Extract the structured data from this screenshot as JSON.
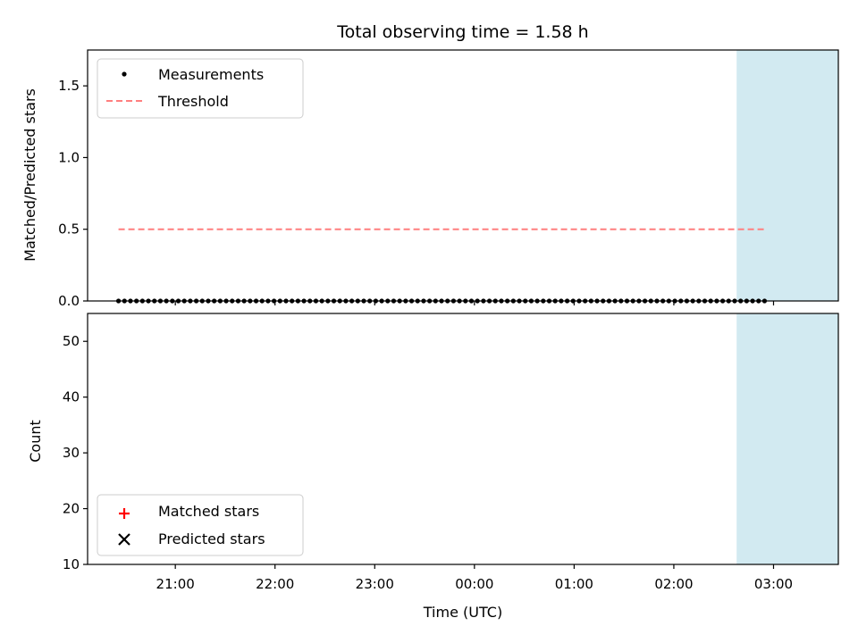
{
  "chart_data": {
    "title": "Total observing time = 1.58 h",
    "xlabel": "Time (UTC)",
    "x_ticks": [
      "21:00",
      "22:00",
      "23:00",
      "00:00",
      "01:00",
      "02:00",
      "03:00"
    ],
    "x_tick_hours": [
      21,
      22,
      23,
      24,
      25,
      26,
      27
    ],
    "xlim_hours": [
      20.12,
      27.65
    ],
    "highlight_span_hours": [
      26.63,
      28.22
    ],
    "highlight_color": "#add8e6",
    "panels": [
      {
        "type": "scatter",
        "ylabel": "Matched/Predicted stars",
        "ylim": [
          0,
          1.75
        ],
        "y_ticks": [
          "0.0",
          "0.5",
          "1.0",
          "1.5"
        ],
        "y_tick_values": [
          0.0,
          0.5,
          1.0,
          1.5
        ],
        "legend": "top-left",
        "series": [
          {
            "name": "Measurements",
            "marker": "dot",
            "color": "#000000",
            "x": [
              20.43,
              20.49,
              20.55,
              20.61,
              20.67,
              20.73,
              20.79,
              20.85,
              20.91,
              20.97,
              21.03,
              21.09,
              21.15,
              21.21,
              21.27,
              21.33,
              21.39,
              21.45,
              21.51,
              21.57,
              21.63,
              21.69,
              21.75,
              21.81,
              21.87,
              21.93,
              21.99,
              22.05,
              22.11,
              22.17,
              22.23,
              22.29,
              22.35,
              22.41,
              22.47,
              22.53,
              22.59,
              22.65,
              22.71,
              22.77,
              22.83,
              22.89,
              22.95,
              23.01,
              23.07,
              23.13,
              23.19,
              23.25,
              23.31,
              23.37,
              23.43,
              23.49,
              23.55,
              23.61,
              23.67,
              23.73,
              23.79,
              23.85,
              23.91,
              23.97,
              24.03,
              24.09,
              24.15,
              24.21,
              24.27,
              24.33,
              24.39,
              24.45,
              24.51,
              24.57,
              24.63,
              24.69,
              24.75,
              24.81,
              24.87,
              24.93,
              24.99,
              25.05,
              25.11,
              25.17,
              25.23,
              25.29,
              25.35,
              25.41,
              25.47,
              25.53,
              25.59,
              25.65,
              25.71,
              25.77,
              25.83,
              25.89,
              25.95,
              26.01,
              26.07,
              26.13,
              26.19,
              26.25,
              26.31,
              26.37,
              26.43,
              26.49,
              26.55,
              26.61,
              26.67,
              26.73,
              26.79,
              26.85,
              26.91
            ],
            "y": [
              0,
              0,
              0,
              0,
              0,
              0,
              0,
              0,
              0,
              0,
              0,
              0,
              0,
              0,
              0,
              0,
              0,
              0,
              0,
              0,
              0,
              0,
              0,
              0,
              0,
              0,
              0,
              0,
              0,
              0,
              0,
              0,
              0,
              0,
              0,
              0,
              0,
              0,
              0,
              0,
              0,
              0,
              0,
              0,
              0,
              0,
              0,
              0,
              0,
              0,
              0,
              0,
              0,
              0,
              0,
              0,
              0,
              0,
              0,
              0,
              0,
              0,
              0,
              0,
              0,
              0,
              0,
              0,
              0,
              0,
              0,
              0,
              0,
              0,
              0,
              0,
              0,
              0,
              0,
              0,
              0,
              0,
              0,
              0,
              0,
              0,
              0,
              0,
              0,
              0,
              0,
              0,
              0,
              0,
              0,
              0,
              0,
              0,
              0,
              0,
              0,
              0,
              0,
              0,
              0,
              0,
              0,
              0,
              0
            ]
          },
          {
            "name": "Threshold",
            "line": "dashed",
            "color": "#ff7f7f",
            "x": [
              20.43,
              26.93
            ],
            "y": [
              0.5,
              0.5
            ]
          }
        ]
      },
      {
        "type": "scatter",
        "ylabel": "Count",
        "ylim": [
          10,
          55
        ],
        "y_ticks": [
          "10",
          "20",
          "30",
          "40",
          "50"
        ],
        "y_tick_values": [
          10,
          20,
          30,
          40,
          50
        ],
        "legend": "bottom-left",
        "series": [
          {
            "name": "Matched stars",
            "marker": "plus",
            "color": "#ff0000",
            "x": [],
            "y": []
          },
          {
            "name": "Predicted stars",
            "marker": "x",
            "color": "#000000",
            "x": [],
            "y": []
          }
        ]
      }
    ]
  }
}
